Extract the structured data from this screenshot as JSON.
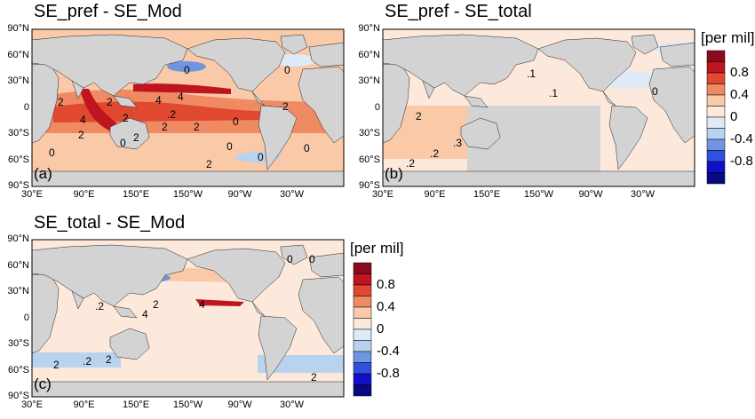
{
  "panels": [
    {
      "letter": "(a)",
      "title": "SE_pref - SE_Mod"
    },
    {
      "letter": "(b)",
      "title": "SE_pref - SE_total"
    },
    {
      "letter": "(c)",
      "title": "SE_total - SE_Mod"
    }
  ],
  "lat_ticks": [
    "90°N",
    "60°N",
    "30°N",
    "0",
    "30°S",
    "60°S",
    "90°S"
  ],
  "lon_ticks": [
    "30°E",
    "90°E",
    "150°E",
    "150°W",
    "90°W",
    "30°W"
  ],
  "colorbar": {
    "label": "[per mil]",
    "ticks": [
      "0.8",
      "0.4",
      "0",
      "-0.4",
      "-0.8"
    ],
    "colors": [
      "#8b0a1e",
      "#c0141e",
      "#e04830",
      "#ef8a62",
      "#f9c9a8",
      "#fde8dc",
      "#deebf7",
      "#b9d3ee",
      "#6f95e0",
      "#3050e0",
      "#1010c8",
      "#0a0a80"
    ]
  },
  "contour_labels_a": [
    "0",
    "2",
    "4",
    "2",
    "2",
    "2",
    "4",
    "2",
    "0",
    "0",
    "2",
    "4",
    "2",
    ".2",
    "0",
    "2",
    "0",
    "0",
    "2",
    "0",
    "0"
  ],
  "contour_labels_b": [
    ".1",
    ".1",
    "0",
    "2",
    ".3",
    ".2",
    ".2"
  ],
  "contour_labels_c": [
    "0",
    "0",
    ".2",
    "2",
    "4",
    "4",
    "2",
    ".2",
    "2",
    "2"
  ],
  "colors": {
    "land": "#d3d3d3",
    "ocean_pos": "#f9c9a8",
    "ocean_neg": "#deebf7"
  }
}
